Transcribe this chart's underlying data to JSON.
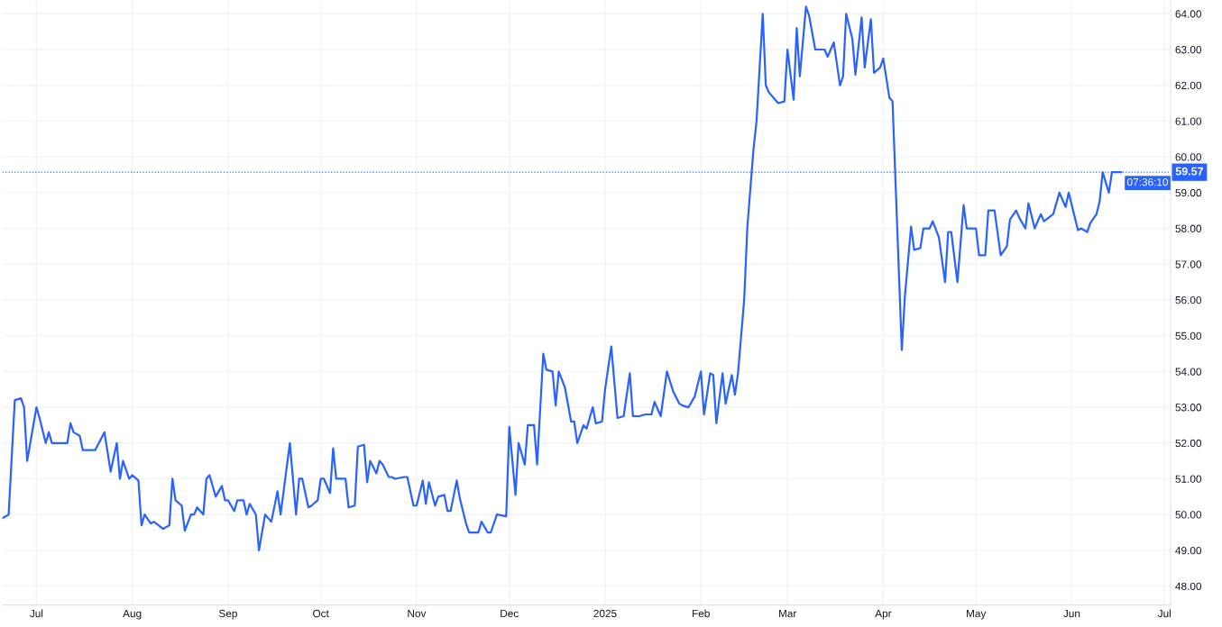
{
  "chart_data": {
    "type": "line",
    "x": [
      "2024-06-20",
      "2024-06-22",
      "2024-06-24",
      "2024-06-26",
      "2024-06-27",
      "2024-06-28",
      "2024-07-01",
      "2024-07-02",
      "2024-07-04",
      "2024-07-05",
      "2024-07-06",
      "2024-07-08",
      "2024-07-11",
      "2024-07-12",
      "2024-07-13",
      "2024-07-15",
      "2024-07-16",
      "2024-07-20",
      "2024-07-23",
      "2024-07-25",
      "2024-07-27",
      "2024-07-28",
      "2024-07-29",
      "2024-07-31",
      "2024-08-01",
      "2024-08-03",
      "2024-08-04",
      "2024-08-05",
      "2024-08-07",
      "2024-08-08",
      "2024-08-11",
      "2024-08-13",
      "2024-08-14",
      "2024-08-15",
      "2024-08-17",
      "2024-08-18",
      "2024-08-20",
      "2024-08-21",
      "2024-08-22",
      "2024-08-24",
      "2024-08-25",
      "2024-08-26",
      "2024-08-28",
      "2024-08-30",
      "2024-08-31",
      "2024-09-01",
      "2024-09-03",
      "2024-09-04",
      "2024-09-06",
      "2024-09-07",
      "2024-09-08",
      "2024-09-10",
      "2024-09-11",
      "2024-09-13",
      "2024-09-15",
      "2024-09-17",
      "2024-09-18",
      "2024-09-21",
      "2024-09-23",
      "2024-09-24",
      "2024-09-25",
      "2024-09-27",
      "2024-09-28",
      "2024-09-30",
      "2024-10-01",
      "2024-10-02",
      "2024-10-04",
      "2024-10-05",
      "2024-10-06",
      "2024-10-09",
      "2024-10-10",
      "2024-10-12",
      "2024-10-13",
      "2024-10-15",
      "2024-10-16",
      "2024-10-17",
      "2024-10-19",
      "2024-10-20",
      "2024-10-21",
      "2024-10-23",
      "2024-10-24",
      "2024-10-25",
      "2024-10-28",
      "2024-10-29",
      "2024-10-31",
      "2024-11-01",
      "2024-11-03",
      "2024-11-04",
      "2024-11-05",
      "2024-11-07",
      "2024-11-08",
      "2024-11-10",
      "2024-11-11",
      "2024-11-12",
      "2024-11-14",
      "2024-11-15",
      "2024-11-17",
      "2024-11-18",
      "2024-11-21",
      "2024-11-22",
      "2024-11-24",
      "2024-11-25",
      "2024-11-27",
      "2024-11-30",
      "2024-12-01",
      "2024-12-03",
      "2024-12-04",
      "2024-12-06",
      "2024-12-07",
      "2024-12-09",
      "2024-12-10",
      "2024-12-12",
      "2024-12-13",
      "2024-12-15",
      "2024-12-16",
      "2024-12-17",
      "2024-12-19",
      "2024-12-21",
      "2024-12-22",
      "2024-12-23",
      "2024-12-25",
      "2024-12-26",
      "2024-12-28",
      "2024-12-29",
      "2024-12-31",
      "2025-01-01",
      "2025-01-03",
      "2025-01-05",
      "2025-01-07",
      "2025-01-09",
      "2025-01-10",
      "2025-01-12",
      "2025-01-14",
      "2025-01-16",
      "2025-01-17",
      "2025-01-19",
      "2025-01-21",
      "2025-01-23",
      "2025-01-25",
      "2025-01-26",
      "2025-01-28",
      "2025-01-30",
      "2025-02-01",
      "2025-02-02",
      "2025-02-04",
      "2025-02-05",
      "2025-02-06",
      "2025-02-08",
      "2025-02-09",
      "2025-02-11",
      "2025-02-12",
      "2025-02-13",
      "2025-02-15",
      "2025-02-16",
      "2025-02-18",
      "2025-02-19",
      "2025-02-21",
      "2025-02-22",
      "2025-02-23",
      "2025-02-25",
      "2025-02-26",
      "2025-02-28",
      "2025-03-01",
      "2025-03-03",
      "2025-03-04",
      "2025-03-05",
      "2025-03-07",
      "2025-03-08",
      "2025-03-10",
      "2025-03-13",
      "2025-03-14",
      "2025-03-16",
      "2025-03-18",
      "2025-03-19",
      "2025-03-20",
      "2025-03-22",
      "2025-03-23",
      "2025-03-25",
      "2025-03-26",
      "2025-03-28",
      "2025-03-29",
      "2025-03-31",
      "2025-04-01",
      "2025-04-03",
      "2025-04-04",
      "2025-04-07",
      "2025-04-08",
      "2025-04-10",
      "2025-04-11",
      "2025-04-13",
      "2025-04-14",
      "2025-04-16",
      "2025-04-17",
      "2025-04-19",
      "2025-04-21",
      "2025-04-22",
      "2025-04-23",
      "2025-04-25",
      "2025-04-27",
      "2025-04-28",
      "2025-05-01",
      "2025-05-02",
      "2025-05-04",
      "2025-05-05",
      "2025-05-07",
      "2025-05-09",
      "2025-05-11",
      "2025-05-12",
      "2025-05-14",
      "2025-05-15",
      "2025-05-17",
      "2025-05-18",
      "2025-05-20",
      "2025-05-22",
      "2025-05-23",
      "2025-05-26",
      "2025-05-28",
      "2025-05-30",
      "2025-05-31",
      "2025-06-02",
      "2025-06-03",
      "2025-06-04",
      "2025-06-06",
      "2025-06-07",
      "2025-06-09",
      "2025-06-10",
      "2025-06-11",
      "2025-06-13",
      "2025-06-14",
      "2025-06-17"
    ],
    "series": [
      {
        "color": "#2962ff",
        "values": [
          49.9,
          50.0,
          53.2,
          53.25,
          53.0,
          51.5,
          53.0,
          52.7,
          52.0,
          52.3,
          52.0,
          52.0,
          52.0,
          52.55,
          52.3,
          52.2,
          51.8,
          51.8,
          52.3,
          51.2,
          52.0,
          51.0,
          51.5,
          51.0,
          51.1,
          50.95,
          49.7,
          50.0,
          49.75,
          49.8,
          49.6,
          49.7,
          51.0,
          50.4,
          50.25,
          49.55,
          50.0,
          50.0,
          50.2,
          50.0,
          51.0,
          51.1,
          50.5,
          50.8,
          50.4,
          50.4,
          50.1,
          50.4,
          50.4,
          50.0,
          50.3,
          50.0,
          49.0,
          50.0,
          49.8,
          50.65,
          50.0,
          52.0,
          50.0,
          51.0,
          51.0,
          50.2,
          50.25,
          50.4,
          51.0,
          51.0,
          50.6,
          51.85,
          51.0,
          51.0,
          50.2,
          50.25,
          51.9,
          51.95,
          50.9,
          51.5,
          51.15,
          51.5,
          51.4,
          51.05,
          51.05,
          51.0,
          51.05,
          51.05,
          50.25,
          50.25,
          50.95,
          50.3,
          50.9,
          50.25,
          50.5,
          50.55,
          50.1,
          50.1,
          50.95,
          50.45,
          49.75,
          49.5,
          49.5,
          49.8,
          49.5,
          49.5,
          50.0,
          49.95,
          52.45,
          50.55,
          52.0,
          51.4,
          52.5,
          52.5,
          51.4,
          54.5,
          54.05,
          54.0,
          53.05,
          54.0,
          53.55,
          52.6,
          52.6,
          52.0,
          52.5,
          52.4,
          53.0,
          52.55,
          52.6,
          53.5,
          54.7,
          52.7,
          52.75,
          53.95,
          52.75,
          52.75,
          52.8,
          52.8,
          53.15,
          52.75,
          54.0,
          53.45,
          53.1,
          53.05,
          53.0,
          53.3,
          54.0,
          52.8,
          53.95,
          53.9,
          52.55,
          53.95,
          53.1,
          53.9,
          53.35,
          53.95,
          56.0,
          58.0,
          60.2,
          61.0,
          64.0,
          62.0,
          61.8,
          61.6,
          61.5,
          61.55,
          63.0,
          61.6,
          63.6,
          62.25,
          64.2,
          63.95,
          63.0,
          63.0,
          62.8,
          63.2,
          62.0,
          62.25,
          64.0,
          63.3,
          62.3,
          63.9,
          62.5,
          63.85,
          62.35,
          62.5,
          62.75,
          61.65,
          61.55,
          54.6,
          56.1,
          58.05,
          57.4,
          57.45,
          58.0,
          58.0,
          58.2,
          57.75,
          56.5,
          57.9,
          57.9,
          56.5,
          58.65,
          58.0,
          58.0,
          57.25,
          57.25,
          58.5,
          58.5,
          57.25,
          57.5,
          58.25,
          58.5,
          58.3,
          58.0,
          58.7,
          58.0,
          58.4,
          58.2,
          58.4,
          59.0,
          58.6,
          59.0,
          58.3,
          57.95,
          58.0,
          57.9,
          58.15,
          58.4,
          58.75,
          59.57,
          59.0,
          59.57,
          59.57
        ]
      }
    ],
    "xlim": [
      "2024-06-20",
      "2025-07-03"
    ],
    "xticks": [
      {
        "value": "2024-07-01",
        "label": "Jul"
      },
      {
        "value": "2024-08-01",
        "label": "Aug"
      },
      {
        "value": "2024-09-01",
        "label": "Sep"
      },
      {
        "value": "2024-10-01",
        "label": "Oct"
      },
      {
        "value": "2024-11-01",
        "label": "Nov"
      },
      {
        "value": "2024-12-01",
        "label": "Dec"
      },
      {
        "value": "2025-01-01",
        "label": "2025"
      },
      {
        "value": "2025-02-01",
        "label": "Feb"
      },
      {
        "value": "2025-03-01",
        "label": "Mar"
      },
      {
        "value": "2025-04-01",
        "label": "Apr"
      },
      {
        "value": "2025-05-01",
        "label": "May"
      },
      {
        "value": "2025-06-01",
        "label": "Jun"
      },
      {
        "value": "2025-07-01",
        "label": "Jul"
      }
    ],
    "ylim": [
      47.47,
      64.35
    ],
    "yticks": [
      {
        "value": 48,
        "label": "48.00"
      },
      {
        "value": 49,
        "label": "49.00"
      },
      {
        "value": 50,
        "label": "50.00"
      },
      {
        "value": 51,
        "label": "51.00"
      },
      {
        "value": 52,
        "label": "52.00"
      },
      {
        "value": 53,
        "label": "53.00"
      },
      {
        "value": 54,
        "label": "54.00"
      },
      {
        "value": 55,
        "label": "55.00"
      },
      {
        "value": 56,
        "label": "56.00"
      },
      {
        "value": 57,
        "label": "57.00"
      },
      {
        "value": 58,
        "label": "58.00"
      },
      {
        "value": 59,
        "label": "59.00"
      },
      {
        "value": 60,
        "label": "60.00"
      },
      {
        "value": 61,
        "label": "61.00"
      },
      {
        "value": 62,
        "label": "62.00"
      },
      {
        "value": 63,
        "label": "63.00"
      },
      {
        "value": 64,
        "label": "64.00"
      }
    ],
    "grid": true,
    "ref_lines": [
      {
        "axis": "y",
        "value": 59.57,
        "label": "59.57",
        "color": "#2962ff",
        "line_style": "dotted"
      }
    ],
    "annotations": [
      "07:36:10"
    ]
  }
}
